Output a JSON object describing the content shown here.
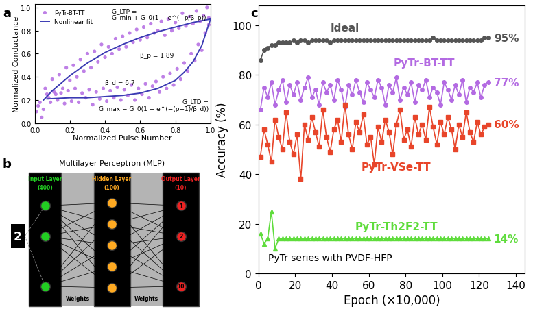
{
  "chart_data": [
    {
      "panel": "a",
      "type": "scatter",
      "x_label": "Normalized Pulse Number",
      "y_label": "Normalized Conductance",
      "xlim": [
        0,
        1.0
      ],
      "ylim": [
        0,
        1.03
      ],
      "xticks": [
        {
          "value": 0,
          "label": "0.0"
        },
        {
          "value": 0.2,
          "label": "0.2"
        },
        {
          "value": 0.4,
          "label": "0.4"
        },
        {
          "value": 0.6,
          "label": "0.6"
        },
        {
          "value": 0.8,
          "label": "0.8"
        },
        {
          "value": 1.0,
          "label": "1.0"
        }
      ],
      "yticks": [
        {
          "value": 0,
          "label": "0.0"
        },
        {
          "value": 0.2,
          "label": "0.2"
        },
        {
          "value": 0.4,
          "label": "0.4"
        },
        {
          "value": 0.6,
          "label": "0.6"
        },
        {
          "value": 0.8,
          "label": "0.8"
        },
        {
          "value": 1.0,
          "label": "1.0"
        }
      ],
      "legend": "upper left",
      "grid": false,
      "annotations": [
        "G_LTP =\nG_min + G_0(1 − e^(−p/β_p))",
        "β_p = 1.89",
        "β_d = 6.7",
        "G_LTD =\nG_max − G_0(1 − e^(−(p−1)/β_d))"
      ],
      "series": [
        {
          "name": "PyTr-BT-TT",
          "type": "scatter",
          "color": "#b36ae2",
          "marker": "circle",
          "x": [
            0.02,
            0.04,
            0.06,
            0.08,
            0.1,
            0.12,
            0.14,
            0.16,
            0.18,
            0.2,
            0.22,
            0.24,
            0.26,
            0.28,
            0.3,
            0.32,
            0.34,
            0.36,
            0.38,
            0.4,
            0.42,
            0.44,
            0.46,
            0.48,
            0.5,
            0.52,
            0.54,
            0.56,
            0.58,
            0.6,
            0.62,
            0.64,
            0.66,
            0.68,
            0.7,
            0.72,
            0.74,
            0.76,
            0.78,
            0.8,
            0.82,
            0.84,
            0.86,
            0.88,
            0.9,
            0.92,
            0.94,
            0.96,
            0.98,
            0.99,
            0.01,
            0.03,
            0.05,
            0.07,
            0.09,
            0.11,
            0.13,
            0.15,
            0.17,
            0.19,
            0.21,
            0.23,
            0.25,
            0.27,
            0.29,
            0.31,
            0.33,
            0.35,
            0.37,
            0.39,
            0.41,
            0.43,
            0.45,
            0.47,
            0.49,
            0.51,
            0.53,
            0.55,
            0.57,
            0.59,
            0.61,
            0.63,
            0.65,
            0.67,
            0.69,
            0.71,
            0.73,
            0.75,
            0.77,
            0.79,
            0.81,
            0.83,
            0.85,
            0.87,
            0.89,
            0.91,
            0.93,
            0.95,
            0.97,
            0.99
          ],
          "values": [
            0.15,
            0.05,
            0.3,
            0.22,
            0.38,
            0.25,
            0.42,
            0.3,
            0.48,
            0.37,
            0.5,
            0.4,
            0.55,
            0.45,
            0.6,
            0.48,
            0.62,
            0.53,
            0.68,
            0.57,
            0.66,
            0.6,
            0.73,
            0.64,
            0.75,
            0.66,
            0.78,
            0.7,
            0.81,
            0.72,
            0.83,
            0.74,
            0.86,
            0.78,
            0.8,
            0.88,
            0.76,
            0.9,
            0.8,
            0.87,
            0.82,
            0.95,
            0.84,
            0.92,
            0.86,
            0.97,
            0.88,
            0.93,
            1.0,
            0.91,
            0.1,
            0.18,
            0.12,
            0.25,
            0.18,
            0.27,
            0.2,
            0.26,
            0.17,
            0.28,
            0.19,
            0.3,
            0.18,
            0.26,
            0.22,
            0.29,
            0.16,
            0.27,
            0.21,
            0.3,
            0.19,
            0.28,
            0.22,
            0.31,
            0.2,
            0.29,
            0.24,
            0.33,
            0.2,
            0.3,
            0.25,
            0.34,
            0.22,
            0.32,
            0.36,
            0.27,
            0.4,
            0.3,
            0.43,
            0.33,
            0.47,
            0.38,
            0.52,
            0.45,
            0.6,
            0.54,
            0.68,
            0.63,
            0.78,
            0.85
          ]
        },
        {
          "name": "Nonlinear fit",
          "type": "line",
          "color": "#3b3bb3",
          "line_style": "solid",
          "x": [
            0.05,
            0.1,
            0.2,
            0.3,
            0.4,
            0.5,
            0.6,
            0.7,
            0.8,
            0.9,
            1.0,
            1.0,
            0.07,
            0.2,
            0.3,
            0.4,
            0.5,
            0.6,
            0.7,
            0.8,
            0.85,
            0.9,
            0.95,
            1.0
          ],
          "values": [
            0.2,
            0.28,
            0.41,
            0.52,
            0.61,
            0.68,
            0.74,
            0.79,
            0.83,
            0.87,
            0.9,
            null,
            0.21,
            0.22,
            0.22,
            0.23,
            0.24,
            0.26,
            0.3,
            0.37,
            0.44,
            0.53,
            0.67,
            0.9
          ]
        }
      ]
    },
    {
      "panel": "c",
      "type": "line",
      "x_label": "Epoch (×10,000)",
      "y_label": "Accuracy (%)",
      "xlim": [
        0,
        145
      ],
      "ylim": [
        0,
        108
      ],
      "xticks": [
        0,
        20,
        40,
        60,
        80,
        100,
        120,
        140
      ],
      "yticks": [
        0,
        20,
        40,
        60,
        80,
        100
      ],
      "grid": false,
      "annotations": [
        "PyTr series with PVDF-HFP"
      ],
      "x": [
        1,
        3,
        5,
        7,
        9,
        11,
        13,
        15,
        17,
        19,
        21,
        23,
        25,
        27,
        29,
        31,
        33,
        35,
        37,
        39,
        41,
        43,
        45,
        47,
        49,
        51,
        53,
        55,
        57,
        59,
        61,
        63,
        65,
        67,
        69,
        71,
        73,
        75,
        77,
        79,
        81,
        83,
        85,
        87,
        89,
        91,
        93,
        95,
        97,
        99,
        101,
        103,
        105,
        107,
        109,
        111,
        113,
        115,
        117,
        119,
        121,
        123,
        125
      ],
      "series": [
        {
          "name": "Ideal",
          "color": "#555555",
          "marker": "circle",
          "end_label": "95%",
          "end_value": 95,
          "values": [
            86,
            90,
            91,
            92,
            92,
            93,
            93,
            93,
            93,
            94,
            93,
            94,
            94,
            93,
            94,
            94,
            94,
            94,
            94,
            93,
            94,
            94,
            94,
            94,
            94,
            94,
            94,
            94,
            94,
            94,
            94,
            94,
            94,
            94,
            94,
            94,
            94,
            94,
            94,
            94,
            94,
            94,
            94,
            94,
            94,
            94,
            94,
            95,
            94,
            94,
            94,
            94,
            94,
            94,
            94,
            94,
            94,
            94,
            94,
            94,
            94,
            95,
            95
          ]
        },
        {
          "name": "PyTr-BT-TT",
          "color": "#b36ae2",
          "marker": "circle",
          "end_label": "77%",
          "end_value": 77,
          "values": [
            66,
            75,
            71,
            77,
            68,
            74,
            78,
            69,
            76,
            72,
            77,
            70,
            75,
            79,
            71,
            74,
            68,
            77,
            73,
            76,
            70,
            78,
            74,
            67,
            76,
            72,
            78,
            73,
            69,
            77,
            74,
            71,
            78,
            75,
            68,
            76,
            73,
            79,
            70,
            75,
            72,
            77,
            69,
            76,
            74,
            78,
            71,
            75,
            73,
            68,
            77,
            74,
            70,
            76,
            72,
            78,
            69,
            75,
            73,
            77,
            71,
            76,
            77
          ]
        },
        {
          "name": "PyTr-VSe-TT",
          "color": "#e8452a",
          "marker": "square",
          "end_label": "60%",
          "end_value": 60,
          "values": [
            47,
            58,
            52,
            45,
            62,
            55,
            50,
            65,
            53,
            48,
            56,
            38,
            60,
            54,
            63,
            57,
            51,
            66,
            55,
            49,
            58,
            62,
            53,
            68,
            56,
            50,
            61,
            57,
            64,
            52,
            55,
            44,
            59,
            53,
            62,
            57,
            48,
            60,
            66,
            54,
            58,
            51,
            63,
            56,
            60,
            54,
            67,
            59,
            52,
            61,
            56,
            63,
            58,
            50,
            60,
            55,
            65,
            57,
            53,
            61,
            56,
            59,
            60
          ]
        },
        {
          "name": "PyTr-Th2F2-TT",
          "color": "#5fdc3c",
          "marker": "triangle",
          "end_label": "14%",
          "end_value": 14,
          "values": [
            16,
            12,
            14,
            25,
            10,
            14,
            14,
            14,
            14,
            14,
            14,
            14,
            14,
            14,
            14,
            14,
            14,
            14,
            14,
            14,
            14,
            14,
            14,
            14,
            14,
            14,
            14,
            14,
            14,
            14,
            14,
            14,
            14,
            14,
            14,
            14,
            14,
            14,
            14,
            14,
            14,
            14,
            14,
            14,
            14,
            14,
            14,
            14,
            14,
            14,
            14,
            14,
            14,
            14,
            14,
            14,
            14,
            14,
            14,
            14,
            14,
            14,
            14
          ]
        }
      ]
    }
  ],
  "diagram": {
    "panel": "b",
    "title": "Multilayer Perceptron (MLP)",
    "input_image": "2",
    "layers": [
      {
        "label_lines": [
          "Input Layer",
          "(400)"
        ],
        "color": "#22cc22"
      },
      {
        "label_lines": [
          "Hidden Layer",
          "(100)"
        ],
        "color": "#ffaa22"
      },
      {
        "label_lines": [
          "Output Layer",
          "(10)"
        ],
        "color": "#ee2222",
        "node_labels": [
          "1",
          "2",
          "10"
        ]
      }
    ],
    "weights_labels": [
      "Weights",
      "Weights"
    ]
  }
}
